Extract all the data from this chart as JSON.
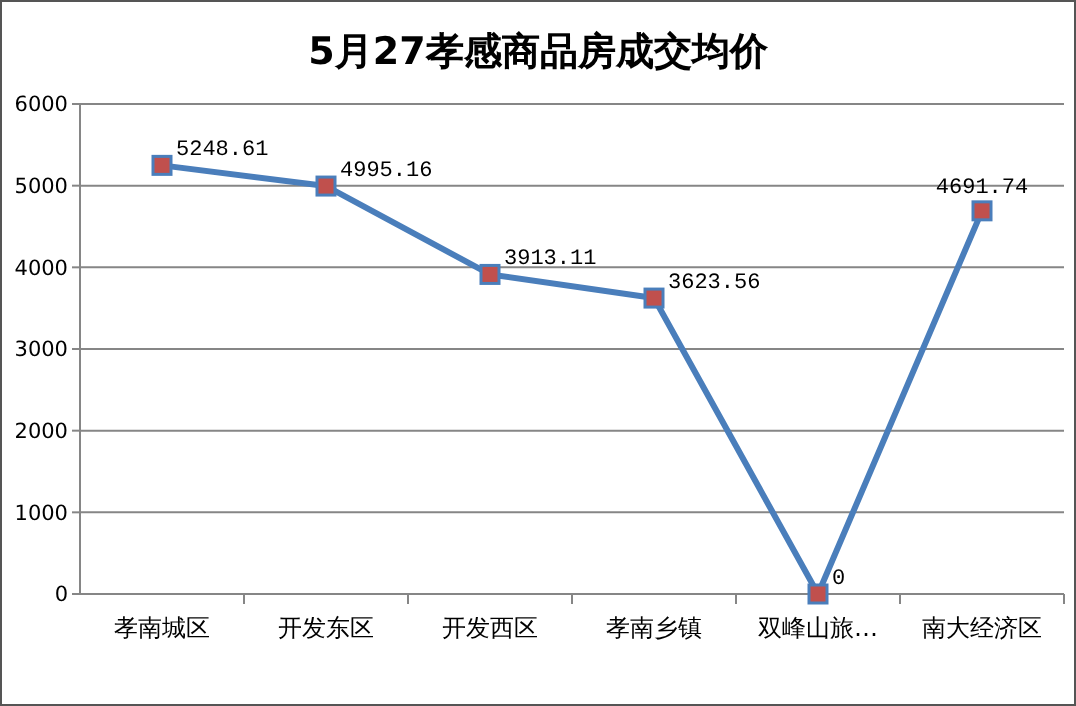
{
  "chart_data": {
    "type": "line",
    "title": "5月27孝感商品房成交均价",
    "categories": [
      "孝南城区",
      "开发东区",
      "开发西区",
      "孝南乡镇",
      "双峰山旅…",
      "南大经济区"
    ],
    "series": [
      {
        "color": "#4a7ebb",
        "values": [
          5248.61,
          4995.16,
          3913.11,
          3623.56,
          0,
          4691.74
        ]
      }
    ],
    "ylim": [
      0,
      6000
    ],
    "yticks": [
      0,
      1000,
      2000,
      3000,
      4000,
      5000,
      6000
    ],
    "grid": "y",
    "marker": "square",
    "line_style": "solid",
    "data_labels": true
  }
}
